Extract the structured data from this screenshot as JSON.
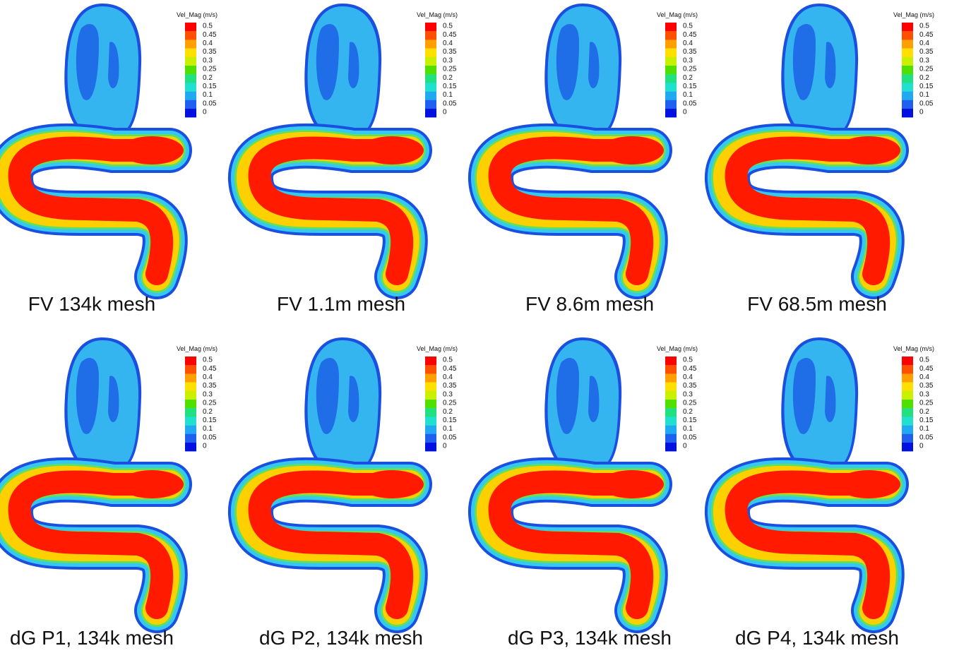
{
  "panels": [
    {
      "caption": "FV 134k mesh",
      "legend": {
        "title": "Vel_Mag (m/s)",
        "labels": [
          "0.5",
          "0.45",
          "0.4",
          "0.35",
          "0.3",
          "0.25",
          "0.2",
          "0.15",
          "0.1",
          "0.05",
          "0"
        ]
      }
    },
    {
      "caption": "FV 1.1m mesh",
      "legend": {
        "title": "Vel_Mag (m/s)",
        "labels": [
          "0.5",
          "0.45",
          "0.4",
          "0.35",
          "0.3",
          "0.25",
          "0.2",
          "0.15",
          "0.1",
          "0.05",
          "0"
        ]
      }
    },
    {
      "caption": "FV 8.6m mesh",
      "legend": {
        "title": "Vel_Mag (m/s)",
        "labels": [
          "0.5",
          "0.45",
          "0.4",
          "0.35",
          "0.3",
          "0.25",
          "0.2",
          "0.15",
          "0.1",
          "0.05",
          "0"
        ]
      }
    },
    {
      "caption": "FV 68.5m mesh",
      "legend": {
        "title": "Vel_Mag (m/s)",
        "labels": [
          "0.5",
          "0.45",
          "0.4",
          "0.35",
          "0.3",
          "0.25",
          "0.2",
          "0.15",
          "0.1",
          "0.05",
          "0"
        ]
      }
    },
    {
      "caption": "dG P1, 134k mesh",
      "legend": {
        "title": "Vel_Mag (m/s)",
        "labels": [
          "0.5",
          "0.45",
          "0.4",
          "0.35",
          "0.3",
          "0.25",
          "0.2",
          "0.15",
          "0.1",
          "0.05",
          "0"
        ]
      }
    },
    {
      "caption": "dG P2, 134k mesh",
      "legend": {
        "title": "Vel_Mag (m/s)",
        "labels": [
          "0.5",
          "0.45",
          "0.4",
          "0.35",
          "0.3",
          "0.25",
          "0.2",
          "0.15",
          "0.1",
          "0.05",
          "0"
        ]
      }
    },
    {
      "caption": "dG P3, 134k mesh",
      "legend": {
        "title": "Vel_Mag (m/s)",
        "labels": [
          "0.5",
          "0.45",
          "0.4",
          "0.35",
          "0.3",
          "0.25",
          "0.2",
          "0.15",
          "0.1",
          "0.05",
          "0"
        ]
      }
    },
    {
      "caption": "dG P4, 134k mesh",
      "legend": {
        "title": "Vel_Mag (m/s)",
        "labels": [
          "0.5",
          "0.45",
          "0.4",
          "0.35",
          "0.3",
          "0.25",
          "0.2",
          "0.15",
          "0.1",
          "0.05",
          "0"
        ]
      }
    }
  ]
}
